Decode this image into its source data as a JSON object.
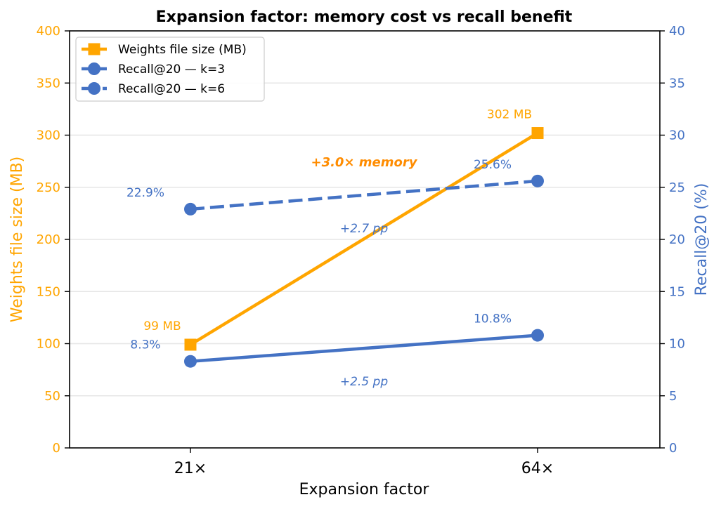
{
  "chart_data": {
    "type": "line",
    "title": "Expansion factor: memory cost vs recall benefit",
    "xlabel": "Expansion factor",
    "categories": [
      "21×",
      "64×"
    ],
    "y_left": {
      "label": "Weights file size (MB)",
      "lim": [
        0,
        400
      ],
      "ticks": [
        0,
        50,
        100,
        150,
        200,
        250,
        300,
        350,
        400
      ],
      "color": "#FFA500"
    },
    "y_right": {
      "label": "Recall@20 (%)",
      "lim": [
        0,
        40
      ],
      "ticks": [
        0,
        5,
        10,
        15,
        20,
        25,
        30,
        35,
        40
      ],
      "color": "#4472C4"
    },
    "grid": "horizontal",
    "legend_position": "top-left",
    "series": [
      {
        "name": "Weights file size (MB)",
        "axis": "left",
        "values": [
          99,
          302
        ],
        "labels": [
          "99 MB",
          "302 MB"
        ],
        "color": "#FFA500",
        "marker": "square",
        "linestyle": "solid"
      },
      {
        "name": "Recall@20 — k=3",
        "axis": "right",
        "values": [
          8.3,
          10.8
        ],
        "labels": [
          "8.3%",
          "10.8%"
        ],
        "color": "#4472C4",
        "marker": "circle",
        "linestyle": "solid"
      },
      {
        "name": "Recall@20 — k=6",
        "axis": "right",
        "values": [
          22.9,
          25.6
        ],
        "labels": [
          "22.9%",
          "25.6%"
        ],
        "color": "#4472C4",
        "marker": "circle",
        "linestyle": "dashed"
      }
    ],
    "annotations": [
      {
        "text": "+3.0× memory",
        "color": "#FF8C00",
        "style": "bold-italic"
      },
      {
        "text": "+2.7 pp",
        "color": "#4472C4",
        "style": "italic"
      },
      {
        "text": "+2.5 pp",
        "color": "#4472C4",
        "style": "italic"
      }
    ]
  }
}
